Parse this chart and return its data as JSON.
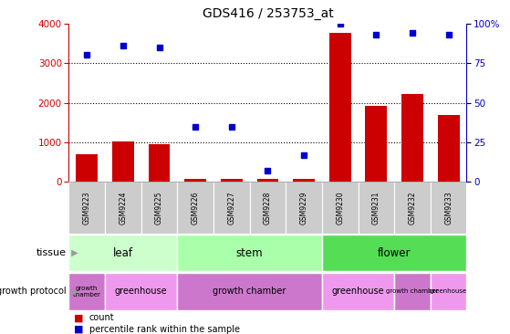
{
  "title": "GDS416 / 253753_at",
  "samples": [
    "GSM9223",
    "GSM9224",
    "GSM9225",
    "GSM9226",
    "GSM9227",
    "GSM9228",
    "GSM9229",
    "GSM9230",
    "GSM9231",
    "GSM9232",
    "GSM9233"
  ],
  "counts": [
    700,
    1020,
    960,
    80,
    70,
    70,
    80,
    3760,
    1920,
    2230,
    1680
  ],
  "percentiles": [
    80,
    86,
    85,
    35,
    35,
    7,
    17,
    100,
    93,
    94,
    93
  ],
  "ylim_left": [
    0,
    4000
  ],
  "ylim_right": [
    0,
    100
  ],
  "yticks_left": [
    0,
    1000,
    2000,
    3000,
    4000
  ],
  "yticks_right": [
    0,
    25,
    50,
    75,
    100
  ],
  "bar_color": "#cc0000",
  "dot_color": "#0000cc",
  "tissue_groups": [
    {
      "label": "leaf",
      "start": 0,
      "end": 3,
      "color": "#ccffcc"
    },
    {
      "label": "stem",
      "start": 3,
      "end": 7,
      "color": "#aaffaa"
    },
    {
      "label": "flower",
      "start": 7,
      "end": 11,
      "color": "#55dd55"
    }
  ],
  "protocol_groups": [
    {
      "label": "growth\nchamber",
      "start": 0,
      "end": 1,
      "color": "#cc77cc"
    },
    {
      "label": "greenhouse",
      "start": 1,
      "end": 3,
      "color": "#ee99ee"
    },
    {
      "label": "growth chamber",
      "start": 3,
      "end": 7,
      "color": "#cc77cc"
    },
    {
      "label": "greenhouse",
      "start": 7,
      "end": 9,
      "color": "#ee99ee"
    },
    {
      "label": "growth chamber",
      "start": 9,
      "end": 10,
      "color": "#cc77cc"
    },
    {
      "label": "greenhouse",
      "start": 10,
      "end": 11,
      "color": "#ee99ee"
    }
  ],
  "left_axis_color": "#cc0000",
  "right_axis_color": "#0000cc",
  "grid_color": "#000000",
  "background_color": "#ffffff",
  "sample_box_color": "#cccccc",
  "chart_bg_color": "#ffffff"
}
